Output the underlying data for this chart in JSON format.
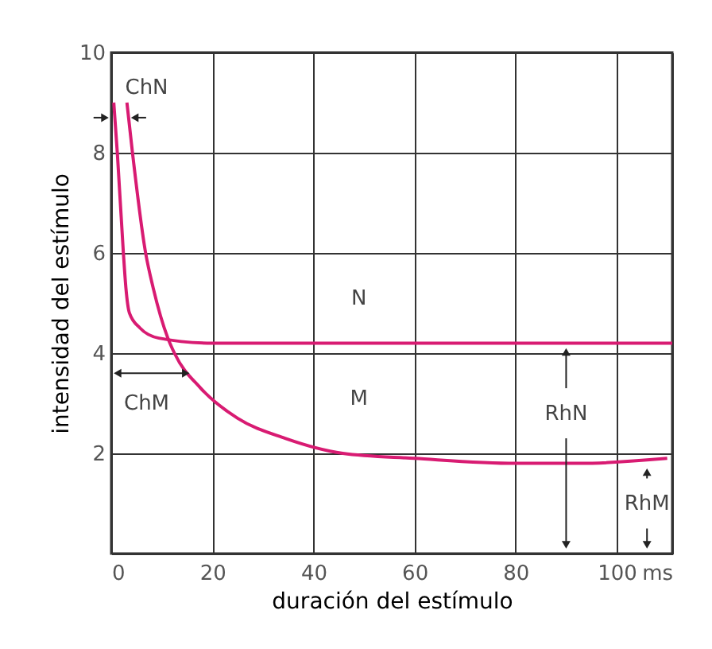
{
  "chart_data": {
    "type": "line",
    "xlabel": "duración del estímulo",
    "ylabel": "intensidad del estímulo",
    "xlim": [
      0,
      111
    ],
    "ylim": [
      0,
      10
    ],
    "xticks": [
      0,
      20,
      40,
      60,
      80,
      100,
      {
        "value": 111,
        "label": "ms"
      }
    ],
    "yticks": [
      {
        "value": 0,
        "label": null
      },
      2,
      4,
      6,
      8,
      10
    ],
    "grid": true,
    "marker": "none",
    "line_style": "solid",
    "series": [
      {
        "color": "#d81b72",
        "x": [
          0.5,
          1.2,
          2.4,
          2.9,
          3.6,
          5.7,
          9.4,
          20,
          40,
          60,
          80,
          111
        ],
        "values": [
          9,
          8,
          6,
          5.3,
          4.8,
          4.5,
          4.3,
          4.2,
          4.2,
          4.2,
          4.2,
          4.2
        ]
      },
      {
        "color": "#d81b72",
        "x": [
          3.1,
          4.2,
          6.8,
          8.3,
          11.2,
          12.5,
          17.7,
          25,
          34.4,
          45.8,
          60,
          80,
          92.7,
          110
        ],
        "values": [
          9,
          8,
          6,
          5.3,
          4.3,
          4.0,
          3.3,
          2.7,
          2.3,
          2.0,
          1.9,
          1.8,
          1.8,
          1.9
        ]
      }
    ],
    "annotations": [
      "N",
      "M",
      {
        "text": "ChN",
        "x": 3.4,
        "y": 8.7
      },
      "ChM",
      {
        "text": "RhN",
        "x": 90,
        "y": 4.2
      },
      {
        "text": "RhM",
        "x": 106,
        "y": 1.8
      }
    ]
  }
}
